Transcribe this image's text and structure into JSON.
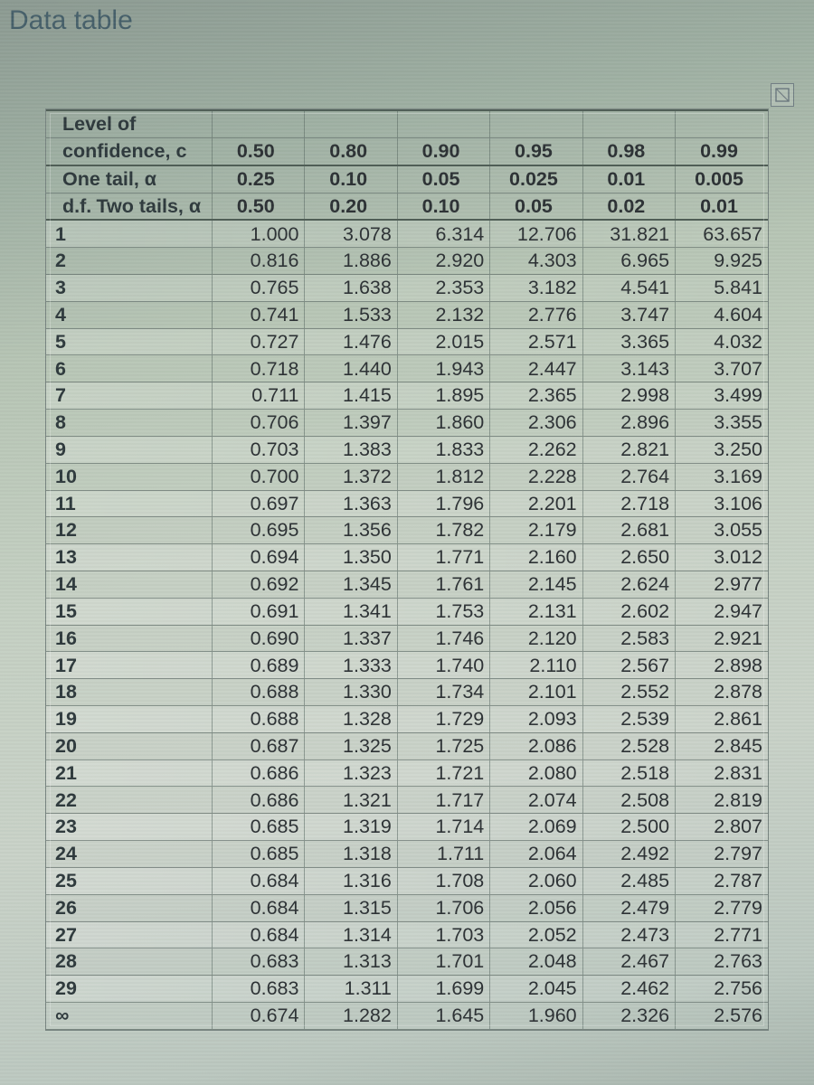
{
  "title": "Data table",
  "headers": {
    "confidence_label_line1": "Level of",
    "confidence_label_line2": "confidence, c",
    "one_tail_label": "One tail, α",
    "two_tails_label": "Two tails, α",
    "df_label": "d.f.",
    "confidence": [
      "0.50",
      "0.80",
      "0.90",
      "0.95",
      "0.98",
      "0.99"
    ],
    "one_tail": [
      "0.25",
      "0.10",
      "0.05",
      "0.025",
      "0.01",
      "0.005"
    ],
    "two_tails": [
      "0.50",
      "0.20",
      "0.10",
      "0.05",
      "0.02",
      "0.01"
    ]
  },
  "rows": [
    {
      "df": "1",
      "v": [
        "1.000",
        "3.078",
        "6.314",
        "12.706",
        "31.821",
        "63.657"
      ]
    },
    {
      "df": "2",
      "v": [
        "0.816",
        "1.886",
        "2.920",
        "4.303",
        "6.965",
        "9.925"
      ]
    },
    {
      "df": "3",
      "v": [
        "0.765",
        "1.638",
        "2.353",
        "3.182",
        "4.541",
        "5.841"
      ]
    },
    {
      "df": "4",
      "v": [
        "0.741",
        "1.533",
        "2.132",
        "2.776",
        "3.747",
        "4.604"
      ]
    },
    {
      "df": "5",
      "v": [
        "0.727",
        "1.476",
        "2.015",
        "2.571",
        "3.365",
        "4.032"
      ]
    },
    {
      "df": "6",
      "v": [
        "0.718",
        "1.440",
        "1.943",
        "2.447",
        "3.143",
        "3.707"
      ]
    },
    {
      "df": "7",
      "v": [
        "0.711",
        "1.415",
        "1.895",
        "2.365",
        "2.998",
        "3.499"
      ]
    },
    {
      "df": "8",
      "v": [
        "0.706",
        "1.397",
        "1.860",
        "2.306",
        "2.896",
        "3.355"
      ]
    },
    {
      "df": "9",
      "v": [
        "0.703",
        "1.383",
        "1.833",
        "2.262",
        "2.821",
        "3.250"
      ]
    },
    {
      "df": "10",
      "v": [
        "0.700",
        "1.372",
        "1.812",
        "2.228",
        "2.764",
        "3.169"
      ]
    },
    {
      "df": "11",
      "v": [
        "0.697",
        "1.363",
        "1.796",
        "2.201",
        "2.718",
        "3.106"
      ]
    },
    {
      "df": "12",
      "v": [
        "0.695",
        "1.356",
        "1.782",
        "2.179",
        "2.681",
        "3.055"
      ]
    },
    {
      "df": "13",
      "v": [
        "0.694",
        "1.350",
        "1.771",
        "2.160",
        "2.650",
        "3.012"
      ]
    },
    {
      "df": "14",
      "v": [
        "0.692",
        "1.345",
        "1.761",
        "2.145",
        "2.624",
        "2.977"
      ]
    },
    {
      "df": "15",
      "v": [
        "0.691",
        "1.341",
        "1.753",
        "2.131",
        "2.602",
        "2.947"
      ]
    },
    {
      "df": "16",
      "v": [
        "0.690",
        "1.337",
        "1.746",
        "2.120",
        "2.583",
        "2.921"
      ]
    },
    {
      "df": "17",
      "v": [
        "0.689",
        "1.333",
        "1.740",
        "2.110",
        "2.567",
        "2.898"
      ]
    },
    {
      "df": "18",
      "v": [
        "0.688",
        "1.330",
        "1.734",
        "2.101",
        "2.552",
        "2.878"
      ]
    },
    {
      "df": "19",
      "v": [
        "0.688",
        "1.328",
        "1.729",
        "2.093",
        "2.539",
        "2.861"
      ]
    },
    {
      "df": "20",
      "v": [
        "0.687",
        "1.325",
        "1.725",
        "2.086",
        "2.528",
        "2.845"
      ]
    },
    {
      "df": "21",
      "v": [
        "0.686",
        "1.323",
        "1.721",
        "2.080",
        "2.518",
        "2.831"
      ]
    },
    {
      "df": "22",
      "v": [
        "0.686",
        "1.321",
        "1.717",
        "2.074",
        "2.508",
        "2.819"
      ]
    },
    {
      "df": "23",
      "v": [
        "0.685",
        "1.319",
        "1.714",
        "2.069",
        "2.500",
        "2.807"
      ]
    },
    {
      "df": "24",
      "v": [
        "0.685",
        "1.318",
        "1.711",
        "2.064",
        "2.492",
        "2.797"
      ]
    },
    {
      "df": "25",
      "v": [
        "0.684",
        "1.316",
        "1.708",
        "2.060",
        "2.485",
        "2.787"
      ]
    },
    {
      "df": "26",
      "v": [
        "0.684",
        "1.315",
        "1.706",
        "2.056",
        "2.479",
        "2.779"
      ]
    },
    {
      "df": "27",
      "v": [
        "0.684",
        "1.314",
        "1.703",
        "2.052",
        "2.473",
        "2.771"
      ]
    },
    {
      "df": "28",
      "v": [
        "0.683",
        "1.313",
        "1.701",
        "2.048",
        "2.467",
        "2.763"
      ]
    },
    {
      "df": "29",
      "v": [
        "0.683",
        "1.311",
        "1.699",
        "2.045",
        "2.462",
        "2.756"
      ]
    },
    {
      "df": "∞",
      "v": [
        "0.674",
        "1.282",
        "1.645",
        "1.960",
        "2.326",
        "2.576"
      ]
    }
  ],
  "style": {
    "background_colors": [
      "#8c9a92",
      "#9fb0a3",
      "#b7c5b5",
      "#c5d0c3",
      "#bcc8c0"
    ],
    "text_color": "#2d3235",
    "grid_color": "#5a6964",
    "title_color": "#46606a",
    "header_fontsize": 21.5,
    "body_fontsize": 21.5,
    "font_family": "Arial"
  }
}
